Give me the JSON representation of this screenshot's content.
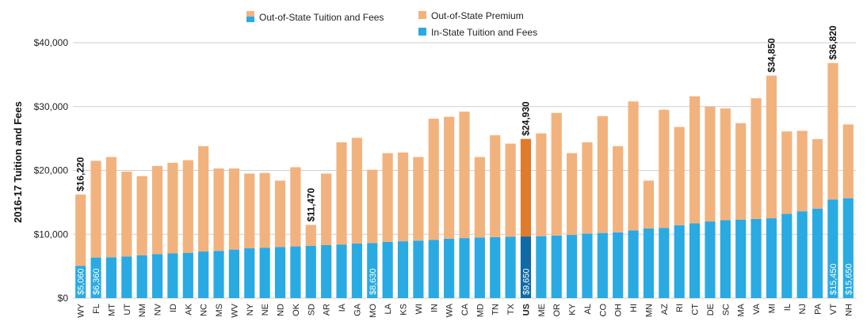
{
  "chart_data": {
    "type": "bar",
    "stacked": true,
    "ylabel": "2016-17 Tuition and Fees",
    "ylim": [
      0,
      40000
    ],
    "yticks": [
      "$0",
      "$10,000",
      "$20,000",
      "$30,000",
      "$40,000"
    ],
    "grid": true,
    "legend_left": {
      "label": "Out-of-State Tuition and Fees",
      "colors": [
        "#f2b27e",
        "#2aaae2"
      ]
    },
    "legend_right": [
      {
        "label": "Out-of-State Premium",
        "color": "#f2b27e"
      },
      {
        "label": "In-State Tuition and Fees",
        "color": "#2aaae2"
      }
    ],
    "highlight": {
      "category": "US",
      "colors": [
        "#e07b2b",
        "#0f6aa6"
      ]
    },
    "categories": [
      "WY",
      "FL",
      "MT",
      "UT",
      "NM",
      "NV",
      "ID",
      "AK",
      "NC",
      "MS",
      "WV",
      "NY",
      "NE",
      "ND",
      "OK",
      "SD",
      "AR",
      "IA",
      "GA",
      "MO",
      "LA",
      "KS",
      "WI",
      "IN",
      "WA",
      "CA",
      "MD",
      "TN",
      "TX",
      "US",
      "ME",
      "OR",
      "KY",
      "AL",
      "CO",
      "OH",
      "HI",
      "MN",
      "AZ",
      "RI",
      "CT",
      "DE",
      "SC",
      "MA",
      "VA",
      "MI",
      "IL",
      "NJ",
      "PA",
      "VT",
      "NH"
    ],
    "series": [
      {
        "name": "In-State Tuition and Fees",
        "values": [
          5060,
          6360,
          6400,
          6500,
          6700,
          6900,
          7000,
          7100,
          7300,
          7400,
          7600,
          7800,
          7900,
          8000,
          8100,
          8200,
          8300,
          8400,
          8550,
          8630,
          8800,
          8900,
          9000,
          9100,
          9300,
          9400,
          9500,
          9550,
          9600,
          9650,
          9700,
          9800,
          9900,
          10100,
          10200,
          10300,
          10600,
          10900,
          11000,
          11400,
          11700,
          12000,
          12200,
          12300,
          12400,
          12500,
          13200,
          13600,
          14000,
          15450,
          15650
        ]
      },
      {
        "name": "Out-of-State Premium",
        "values": [
          11160,
          15140,
          15700,
          13300,
          12400,
          13800,
          14200,
          14500,
          16500,
          12900,
          12700,
          11700,
          11700,
          10400,
          12400,
          3270,
          11200,
          16000,
          16550,
          11470,
          13900,
          13900,
          13100,
          19000,
          19100,
          19800,
          12600,
          15950,
          14600,
          15280,
          16100,
          19200,
          12800,
          14300,
          18300,
          13500,
          20200,
          7500,
          18500,
          15400,
          19900,
          18000,
          17500,
          15100,
          18900,
          22350,
          12900,
          12600,
          10900,
          21370,
          11550
        ]
      }
    ],
    "data_labels": {
      "WY": "$16,220",
      "SD": "$11,470",
      "US": "$24,930",
      "MI": "$34,850",
      "VT": "$36,820"
    },
    "inbar_labels": {
      "WY": "$5,060",
      "FL": "$6,360",
      "MO": "$8,630",
      "US": "$9,650",
      "VT": "$15,450",
      "NH": "$15,650"
    }
  }
}
